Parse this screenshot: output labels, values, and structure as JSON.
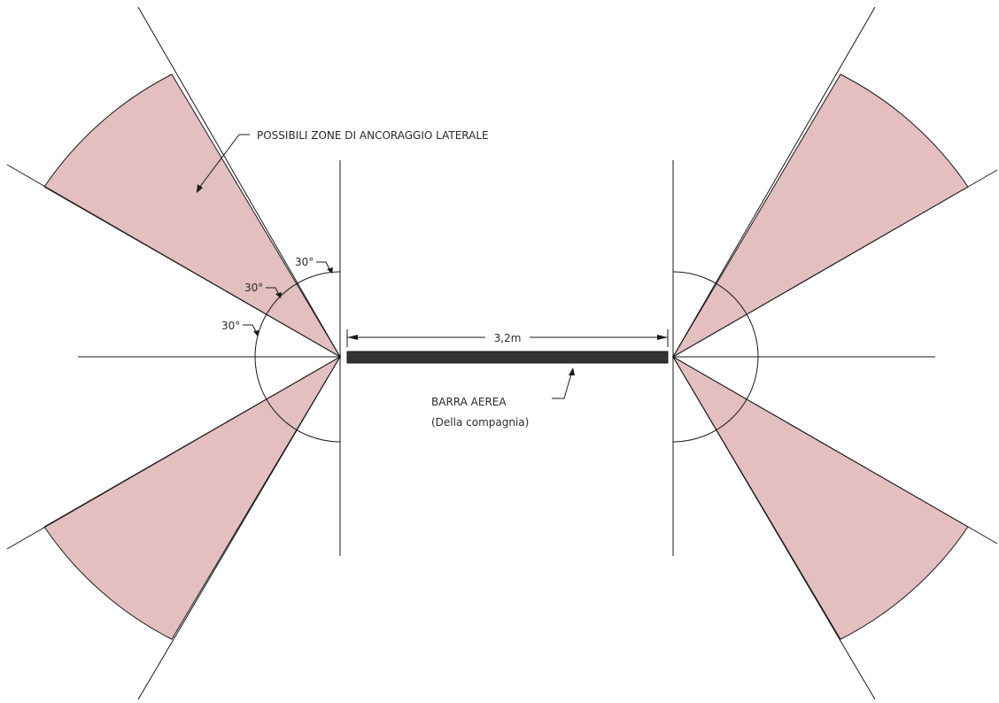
{
  "labels": {
    "zones": "POSSIBILI ZONE DI ANCORAGGIO LATERALE",
    "angle_top": "30°",
    "angle_mid": "30°",
    "angle_low": "30°",
    "dimension": "3,2m",
    "bar_name": "BARRA AEREA",
    "bar_sub": "(Della  compagnia)"
  },
  "colors": {
    "sector_fill": "#e3bfc0",
    "line": "#1a1a1a",
    "bar": "#333333"
  }
}
